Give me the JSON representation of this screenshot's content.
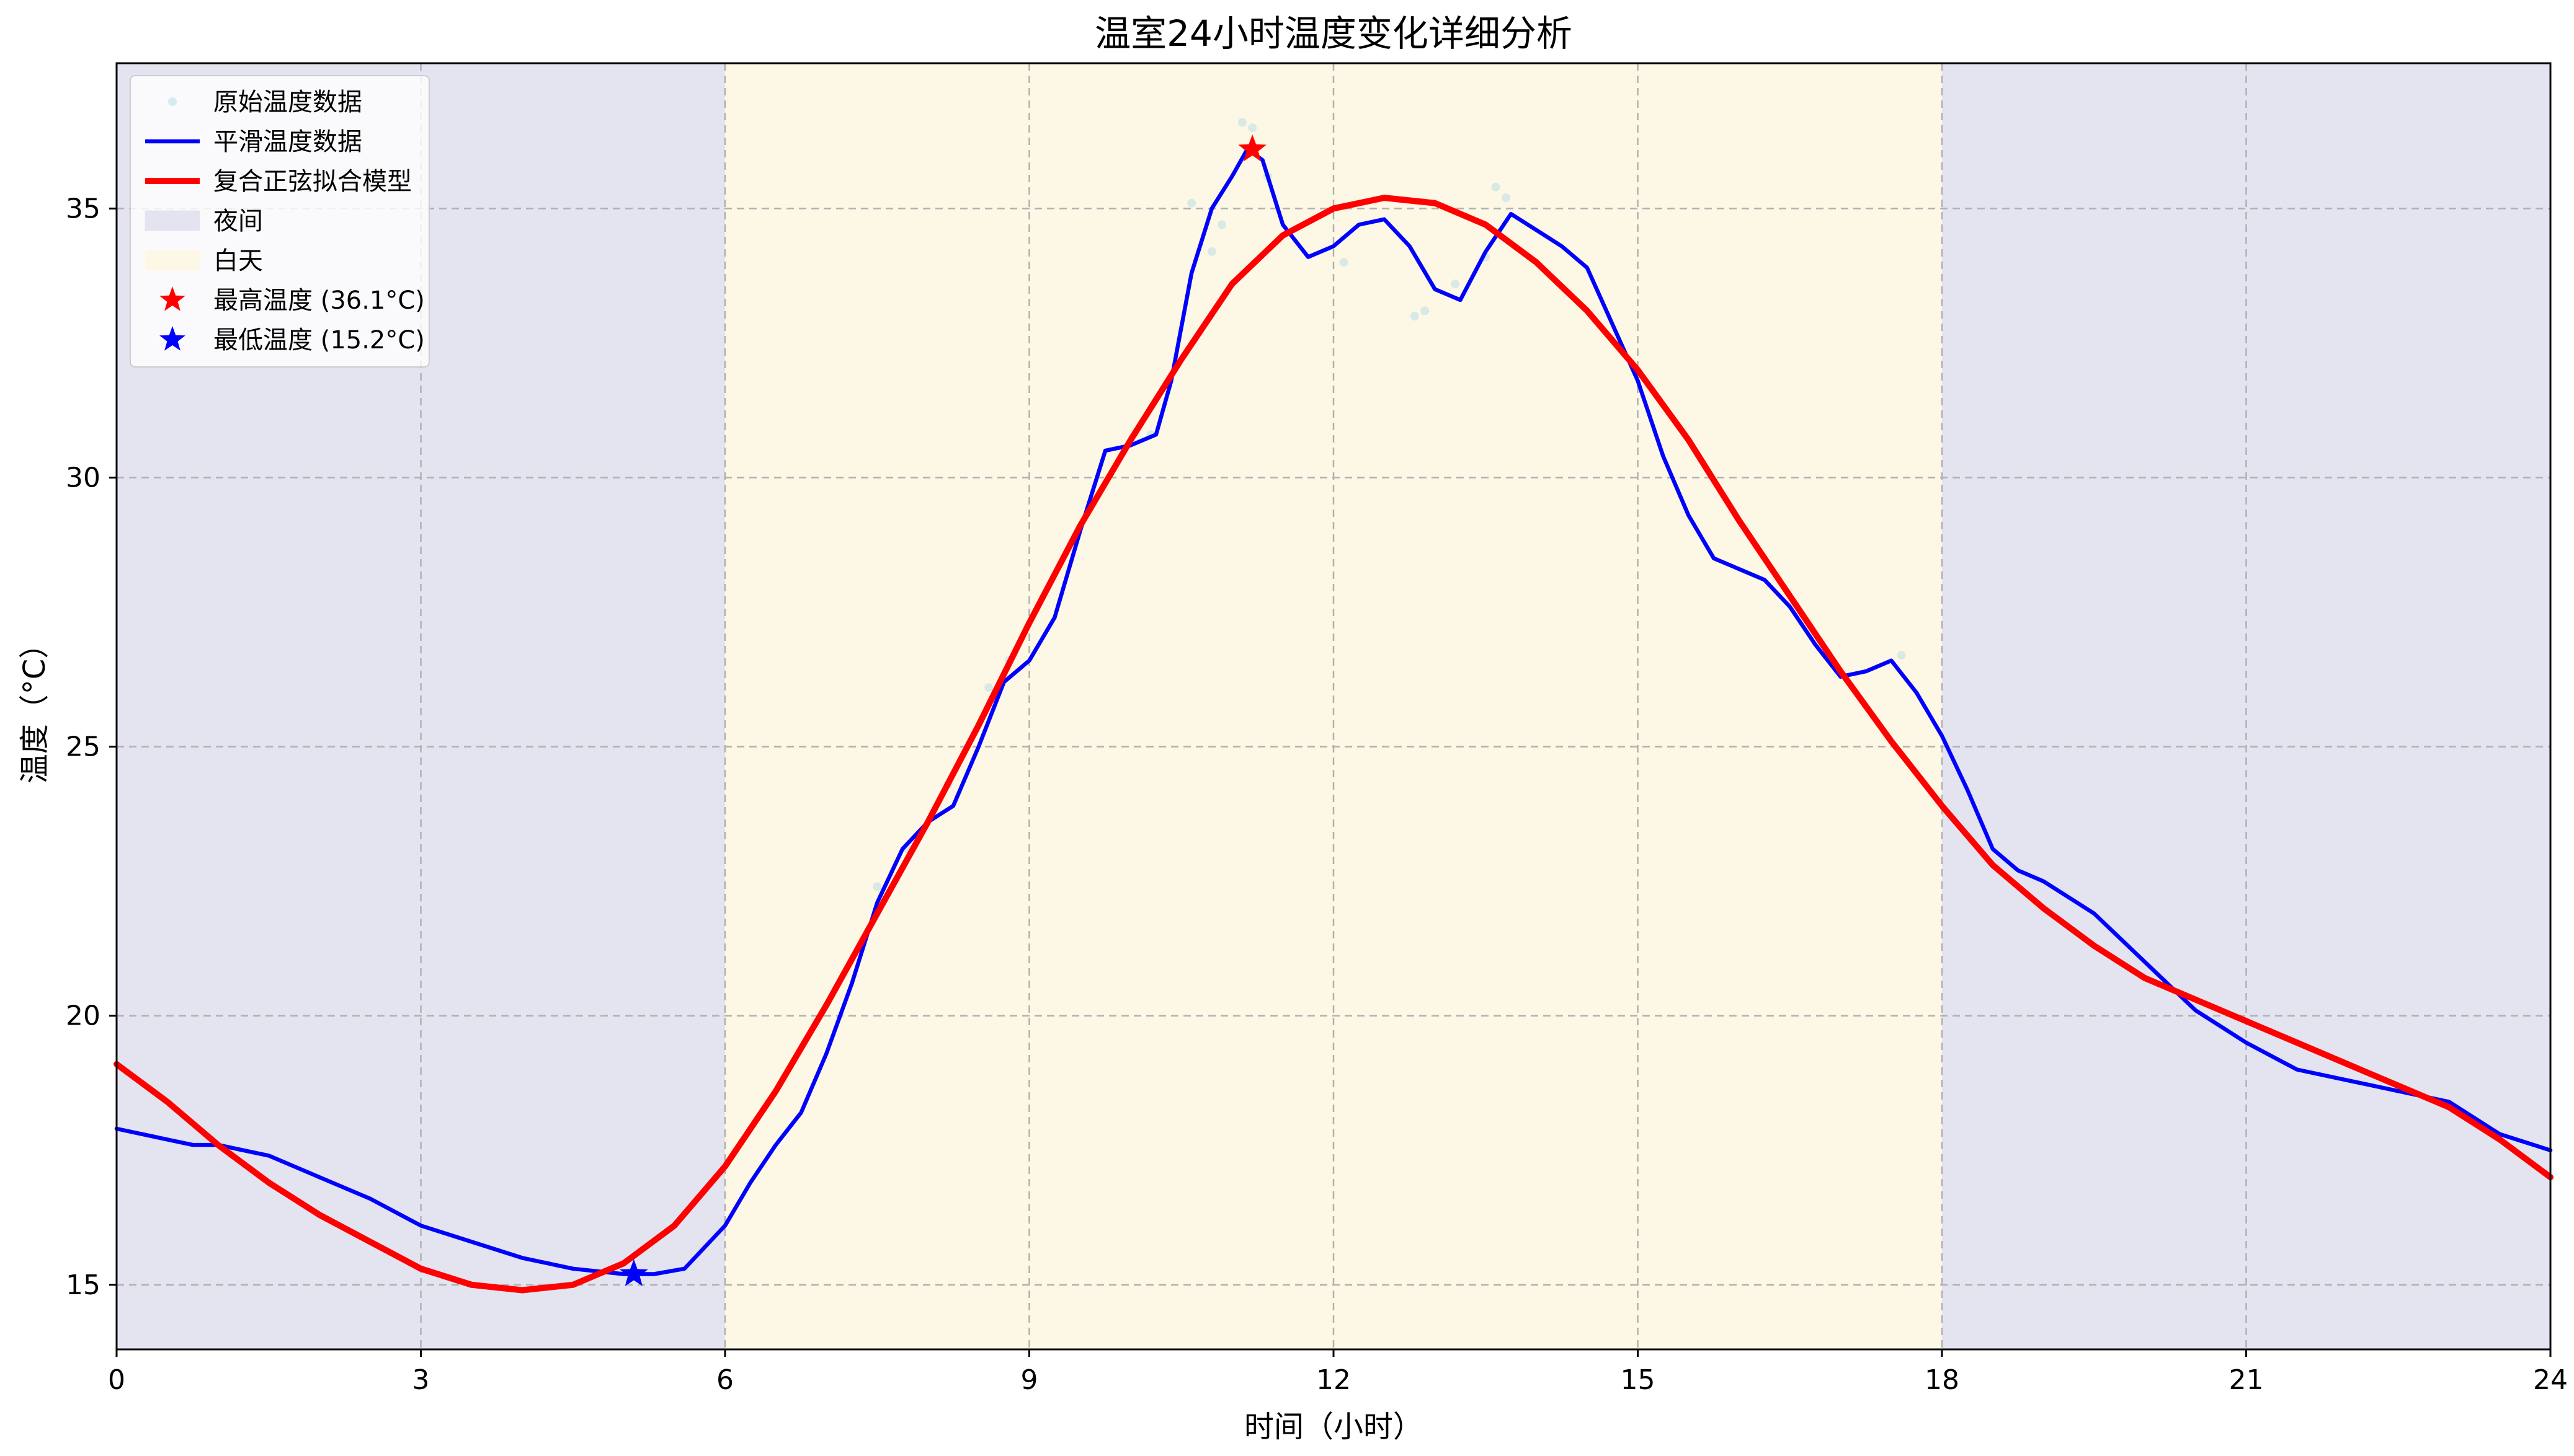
{
  "chart_data": {
    "type": "line",
    "title": "温室24小时温度变化详细分析",
    "xlabel": "时间（小时）",
    "ylabel": "温度（°C）",
    "xlim": [
      0,
      24
    ],
    "ylim": [
      13.8,
      37.7
    ],
    "x_ticks": [
      0,
      3,
      6,
      9,
      12,
      15,
      18,
      21,
      24
    ],
    "y_ticks": [
      15,
      20,
      25,
      30,
      35
    ],
    "grid": true,
    "legend_position": "top-left",
    "regions": [
      {
        "name": "夜间",
        "from": 0,
        "to": 6,
        "color": "#e4e4f1"
      },
      {
        "name": "白天",
        "from": 6,
        "to": 18,
        "color": "#fdf8e5"
      },
      {
        "name": "夜间",
        "from": 18,
        "to": 24,
        "color": "#e4e4f1"
      }
    ],
    "series": [
      {
        "name": "原始温度数据",
        "kind": "scatter",
        "color": "#add8e6",
        "x": [
          7.5,
          7.8,
          8.2,
          8.6,
          8.8,
          10.2,
          10.6,
          10.8,
          10.9,
          11.1,
          11.2,
          11.35,
          12.1,
          12.8,
          12.9,
          13.2,
          13.5,
          13.6,
          13.7,
          17.6
        ],
        "y": [
          22.4,
          23.1,
          24.3,
          26.1,
          26.6,
          30.8,
          35.1,
          34.2,
          34.7,
          36.6,
          36.5,
          35.6,
          34.0,
          33.0,
          33.1,
          33.6,
          34.1,
          35.4,
          35.2,
          26.7
        ]
      },
      {
        "name": "平滑温度数据",
        "kind": "line",
        "color": "#0000ff",
        "x": [
          0,
          0.5,
          0.75,
          1.0,
          1.25,
          1.5,
          2.0,
          2.5,
          3.0,
          3.5,
          4.0,
          4.5,
          5.0,
          5.3,
          5.6,
          6.0,
          6.25,
          6.5,
          6.75,
          7.0,
          7.25,
          7.5,
          7.75,
          8.0,
          8.25,
          8.5,
          8.75,
          9.0,
          9.25,
          9.5,
          9.75,
          10.0,
          10.25,
          10.4,
          10.6,
          10.8,
          11.0,
          11.15,
          11.3,
          11.5,
          11.75,
          12.0,
          12.25,
          12.5,
          12.75,
          13.0,
          13.25,
          13.5,
          13.75,
          14.0,
          14.25,
          14.5,
          15.0,
          15.25,
          15.5,
          15.75,
          16.0,
          16.25,
          16.5,
          16.75,
          17.0,
          17.25,
          17.5,
          17.75,
          18.0,
          18.25,
          18.5,
          18.75,
          19.0,
          19.5,
          20.0,
          20.5,
          21.0,
          21.5,
          22.0,
          22.5,
          23.0,
          23.5,
          24.0
        ],
        "y": [
          17.9,
          17.7,
          17.6,
          17.6,
          17.5,
          17.4,
          17.0,
          16.6,
          16.1,
          15.8,
          15.5,
          15.3,
          15.2,
          15.2,
          15.3,
          16.1,
          16.9,
          17.6,
          18.2,
          19.3,
          20.6,
          22.1,
          23.1,
          23.6,
          23.9,
          25.0,
          26.2,
          26.6,
          27.4,
          29.0,
          30.5,
          30.6,
          30.8,
          31.8,
          33.8,
          35.0,
          35.6,
          36.1,
          35.9,
          34.7,
          34.1,
          34.3,
          34.7,
          34.8,
          34.3,
          33.5,
          33.3,
          34.2,
          34.9,
          34.6,
          34.3,
          33.9,
          31.8,
          30.4,
          29.3,
          28.5,
          28.3,
          28.1,
          27.6,
          26.9,
          26.3,
          26.4,
          26.6,
          26.0,
          25.2,
          24.2,
          23.1,
          22.7,
          22.5,
          21.9,
          21.0,
          20.1,
          19.5,
          19.0,
          18.8,
          18.6,
          18.4,
          17.8,
          17.5
        ]
      },
      {
        "name": "复合正弦拟合模型",
        "kind": "line",
        "color": "#ff0000",
        "x": [
          0,
          0.5,
          1.0,
          1.5,
          2.0,
          2.5,
          3.0,
          3.5,
          4.0,
          4.5,
          5.0,
          5.5,
          6.0,
          6.5,
          7.0,
          7.5,
          8.0,
          8.5,
          9.0,
          9.5,
          10.0,
          10.5,
          11.0,
          11.5,
          12.0,
          12.5,
          13.0,
          13.5,
          14.0,
          14.5,
          15.0,
          15.5,
          16.0,
          16.5,
          17.0,
          17.5,
          18.0,
          18.5,
          19.0,
          19.5,
          20.0,
          20.5,
          21.0,
          21.5,
          22.0,
          22.5,
          23.0,
          23.5,
          24.0
        ],
        "y": [
          19.1,
          18.4,
          17.6,
          16.9,
          16.3,
          15.8,
          15.3,
          15.0,
          14.9,
          15.0,
          15.4,
          16.1,
          17.2,
          18.6,
          20.2,
          21.9,
          23.6,
          25.4,
          27.3,
          29.1,
          30.7,
          32.2,
          33.6,
          34.5,
          35.0,
          35.2,
          35.1,
          34.7,
          34.0,
          33.1,
          32.0,
          30.7,
          29.2,
          27.8,
          26.4,
          25.1,
          23.9,
          22.8,
          22.0,
          21.3,
          20.7,
          20.3,
          19.9,
          19.5,
          19.1,
          18.7,
          18.3,
          17.7,
          17.0
        ]
      }
    ],
    "markers": [
      {
        "name": "最高温度 (36.1°C)",
        "x": 11.2,
        "y": 36.1,
        "color": "#ff0000",
        "symbol": "star"
      },
      {
        "name": "最低温度 (15.2°C)",
        "x": 5.1,
        "y": 15.2,
        "color": "#0000ff",
        "symbol": "star"
      }
    ],
    "legend": [
      {
        "label": "原始温度数据",
        "kind": "scatter",
        "color": "#add8e6"
      },
      {
        "label": "平滑温度数据",
        "kind": "line",
        "color": "#0000ff"
      },
      {
        "label": "复合正弦拟合模型",
        "kind": "line-thick",
        "color": "#ff0000"
      },
      {
        "label": "夜间",
        "kind": "patch",
        "color": "#e4e4f1"
      },
      {
        "label": "白天",
        "kind": "patch",
        "color": "#fdf8e5"
      },
      {
        "label": "最高温度 (36.1°C)",
        "kind": "star",
        "color": "#ff0000"
      },
      {
        "label": "最低温度 (15.2°C)",
        "kind": "star",
        "color": "#0000ff"
      }
    ]
  }
}
